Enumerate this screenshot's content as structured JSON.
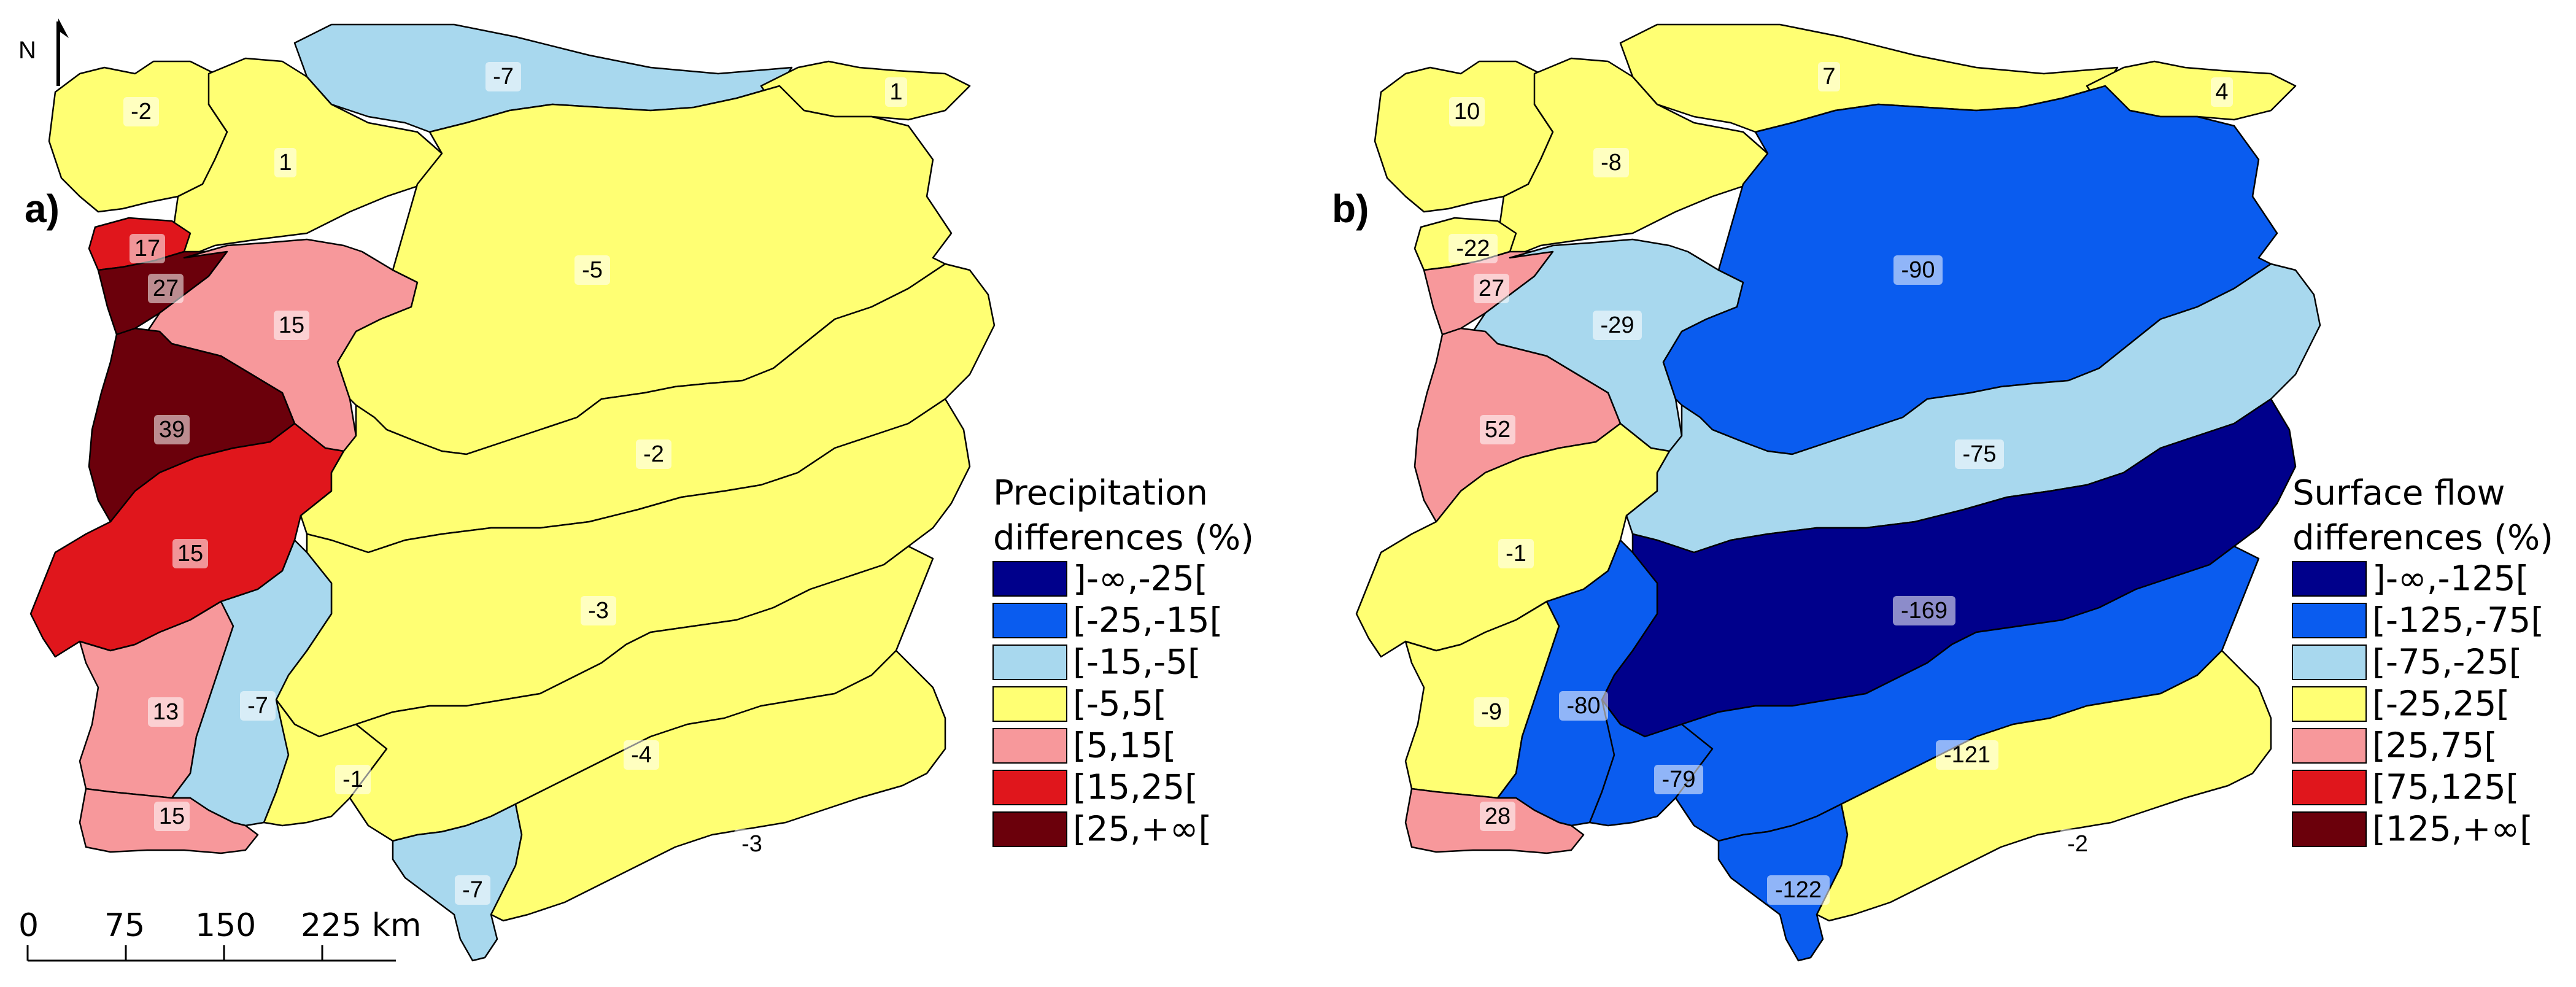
{
  "colors": {
    "c1": "#00008b",
    "c2": "#0a5cef",
    "c3": "#a8d8ee",
    "c4": "#ffff73",
    "c5": "#f7989b",
    "c6": "#e0161c",
    "c7": "#6b000b"
  },
  "north_label": "N",
  "scale_bar": {
    "ticks": [
      "0",
      "75",
      "150",
      "225 km"
    ]
  },
  "panels": [
    {
      "letter": "a)",
      "legend_title": [
        "Precipitation",
        "differences (%)"
      ],
      "legend_items": [
        {
          "label": "]-∞,-25[",
          "color": "#00008b"
        },
        {
          "label": "[-25,-15[",
          "color": "#0a5cef"
        },
        {
          "label": "[-15,-5[",
          "color": "#a8d8ee"
        },
        {
          "label": "[-5,5[",
          "color": "#ffff73"
        },
        {
          "label": "[5,15[",
          "color": "#f7989b"
        },
        {
          "label": "[15,25[",
          "color": "#e0161c"
        },
        {
          "label": "[25,+∞[",
          "color": "#6b000b"
        }
      ],
      "basins": [
        {
          "id": "galicia-costa",
          "value": "-2",
          "class": 4
        },
        {
          "id": "minho-sil",
          "value": "1",
          "class": 4
        },
        {
          "id": "cantabrico-occ",
          "value": "-7",
          "class": 3
        },
        {
          "id": "cantabrico-or",
          "value": "1",
          "class": 4
        },
        {
          "id": "lima",
          "value": "17",
          "class": 6
        },
        {
          "id": "cavado-ave",
          "value": "27",
          "class": 7
        },
        {
          "id": "douro-pt",
          "value": "15",
          "class": 5
        },
        {
          "id": "douro-es",
          "value": "-5",
          "class": 4
        },
        {
          "id": "vouga-mondego",
          "value": "39",
          "class": 7
        },
        {
          "id": "tejo-pt",
          "value": "15",
          "class": 6
        },
        {
          "id": "tajo-es",
          "value": "-2",
          "class": 4
        },
        {
          "id": "guadiana-es",
          "value": "-3",
          "class": 4
        },
        {
          "id": "sado-mira",
          "value": "13",
          "class": 5
        },
        {
          "id": "guadiana-pt",
          "value": "-7",
          "class": 3
        },
        {
          "id": "tinto-odiel",
          "value": "-1",
          "class": 4
        },
        {
          "id": "guadalquivir",
          "value": "-4",
          "class": 4
        },
        {
          "id": "ribeiras-algarve",
          "value": "15",
          "class": 5
        },
        {
          "id": "guadalete-barbate",
          "value": "-7",
          "class": 3
        },
        {
          "id": "andalucia-med",
          "value": "-3",
          "class": 4
        }
      ]
    },
    {
      "letter": "b)",
      "legend_title": [
        "Surface flow",
        "differences (%)"
      ],
      "legend_items": [
        {
          "label": "]-∞,-125[",
          "color": "#00008b"
        },
        {
          "label": "[-125,-75[",
          "color": "#0a5cef"
        },
        {
          "label": "[-75,-25[",
          "color": "#a8d8ee"
        },
        {
          "label": "[-25,25[",
          "color": "#ffff73"
        },
        {
          "label": "[25,75[",
          "color": "#f7989b"
        },
        {
          "label": "[75,125[",
          "color": "#e0161c"
        },
        {
          "label": "[125,+∞[",
          "color": "#6b000b"
        }
      ],
      "basins": [
        {
          "id": "galicia-costa",
          "value": "10",
          "class": 4
        },
        {
          "id": "minho-sil",
          "value": "-8",
          "class": 4
        },
        {
          "id": "cantabrico-occ",
          "value": "7",
          "class": 4
        },
        {
          "id": "cantabrico-or",
          "value": "4",
          "class": 4
        },
        {
          "id": "lima",
          "value": "-22",
          "class": 4
        },
        {
          "id": "cavado-ave",
          "value": "27",
          "class": 5
        },
        {
          "id": "douro-pt",
          "value": "-29",
          "class": 3
        },
        {
          "id": "douro-es",
          "value": "-90",
          "class": 2
        },
        {
          "id": "vouga-mondego",
          "value": "52",
          "class": 5
        },
        {
          "id": "tejo-pt",
          "value": "-1",
          "class": 4
        },
        {
          "id": "tajo-es",
          "value": "-75",
          "class": 3
        },
        {
          "id": "guadiana-es",
          "value": "-169",
          "class": 1
        },
        {
          "id": "sado-mira",
          "value": "-9",
          "class": 4
        },
        {
          "id": "guadiana-pt",
          "value": "-80",
          "class": 2
        },
        {
          "id": "tinto-odiel",
          "value": "-79",
          "class": 2
        },
        {
          "id": "guadalquivir",
          "value": "-121",
          "class": 2
        },
        {
          "id": "ribeiras-algarve",
          "value": "28",
          "class": 5
        },
        {
          "id": "guadalete-barbate",
          "value": "-122",
          "class": 2
        },
        {
          "id": "andalucia-med",
          "value": "-2",
          "class": 4
        }
      ]
    }
  ]
}
